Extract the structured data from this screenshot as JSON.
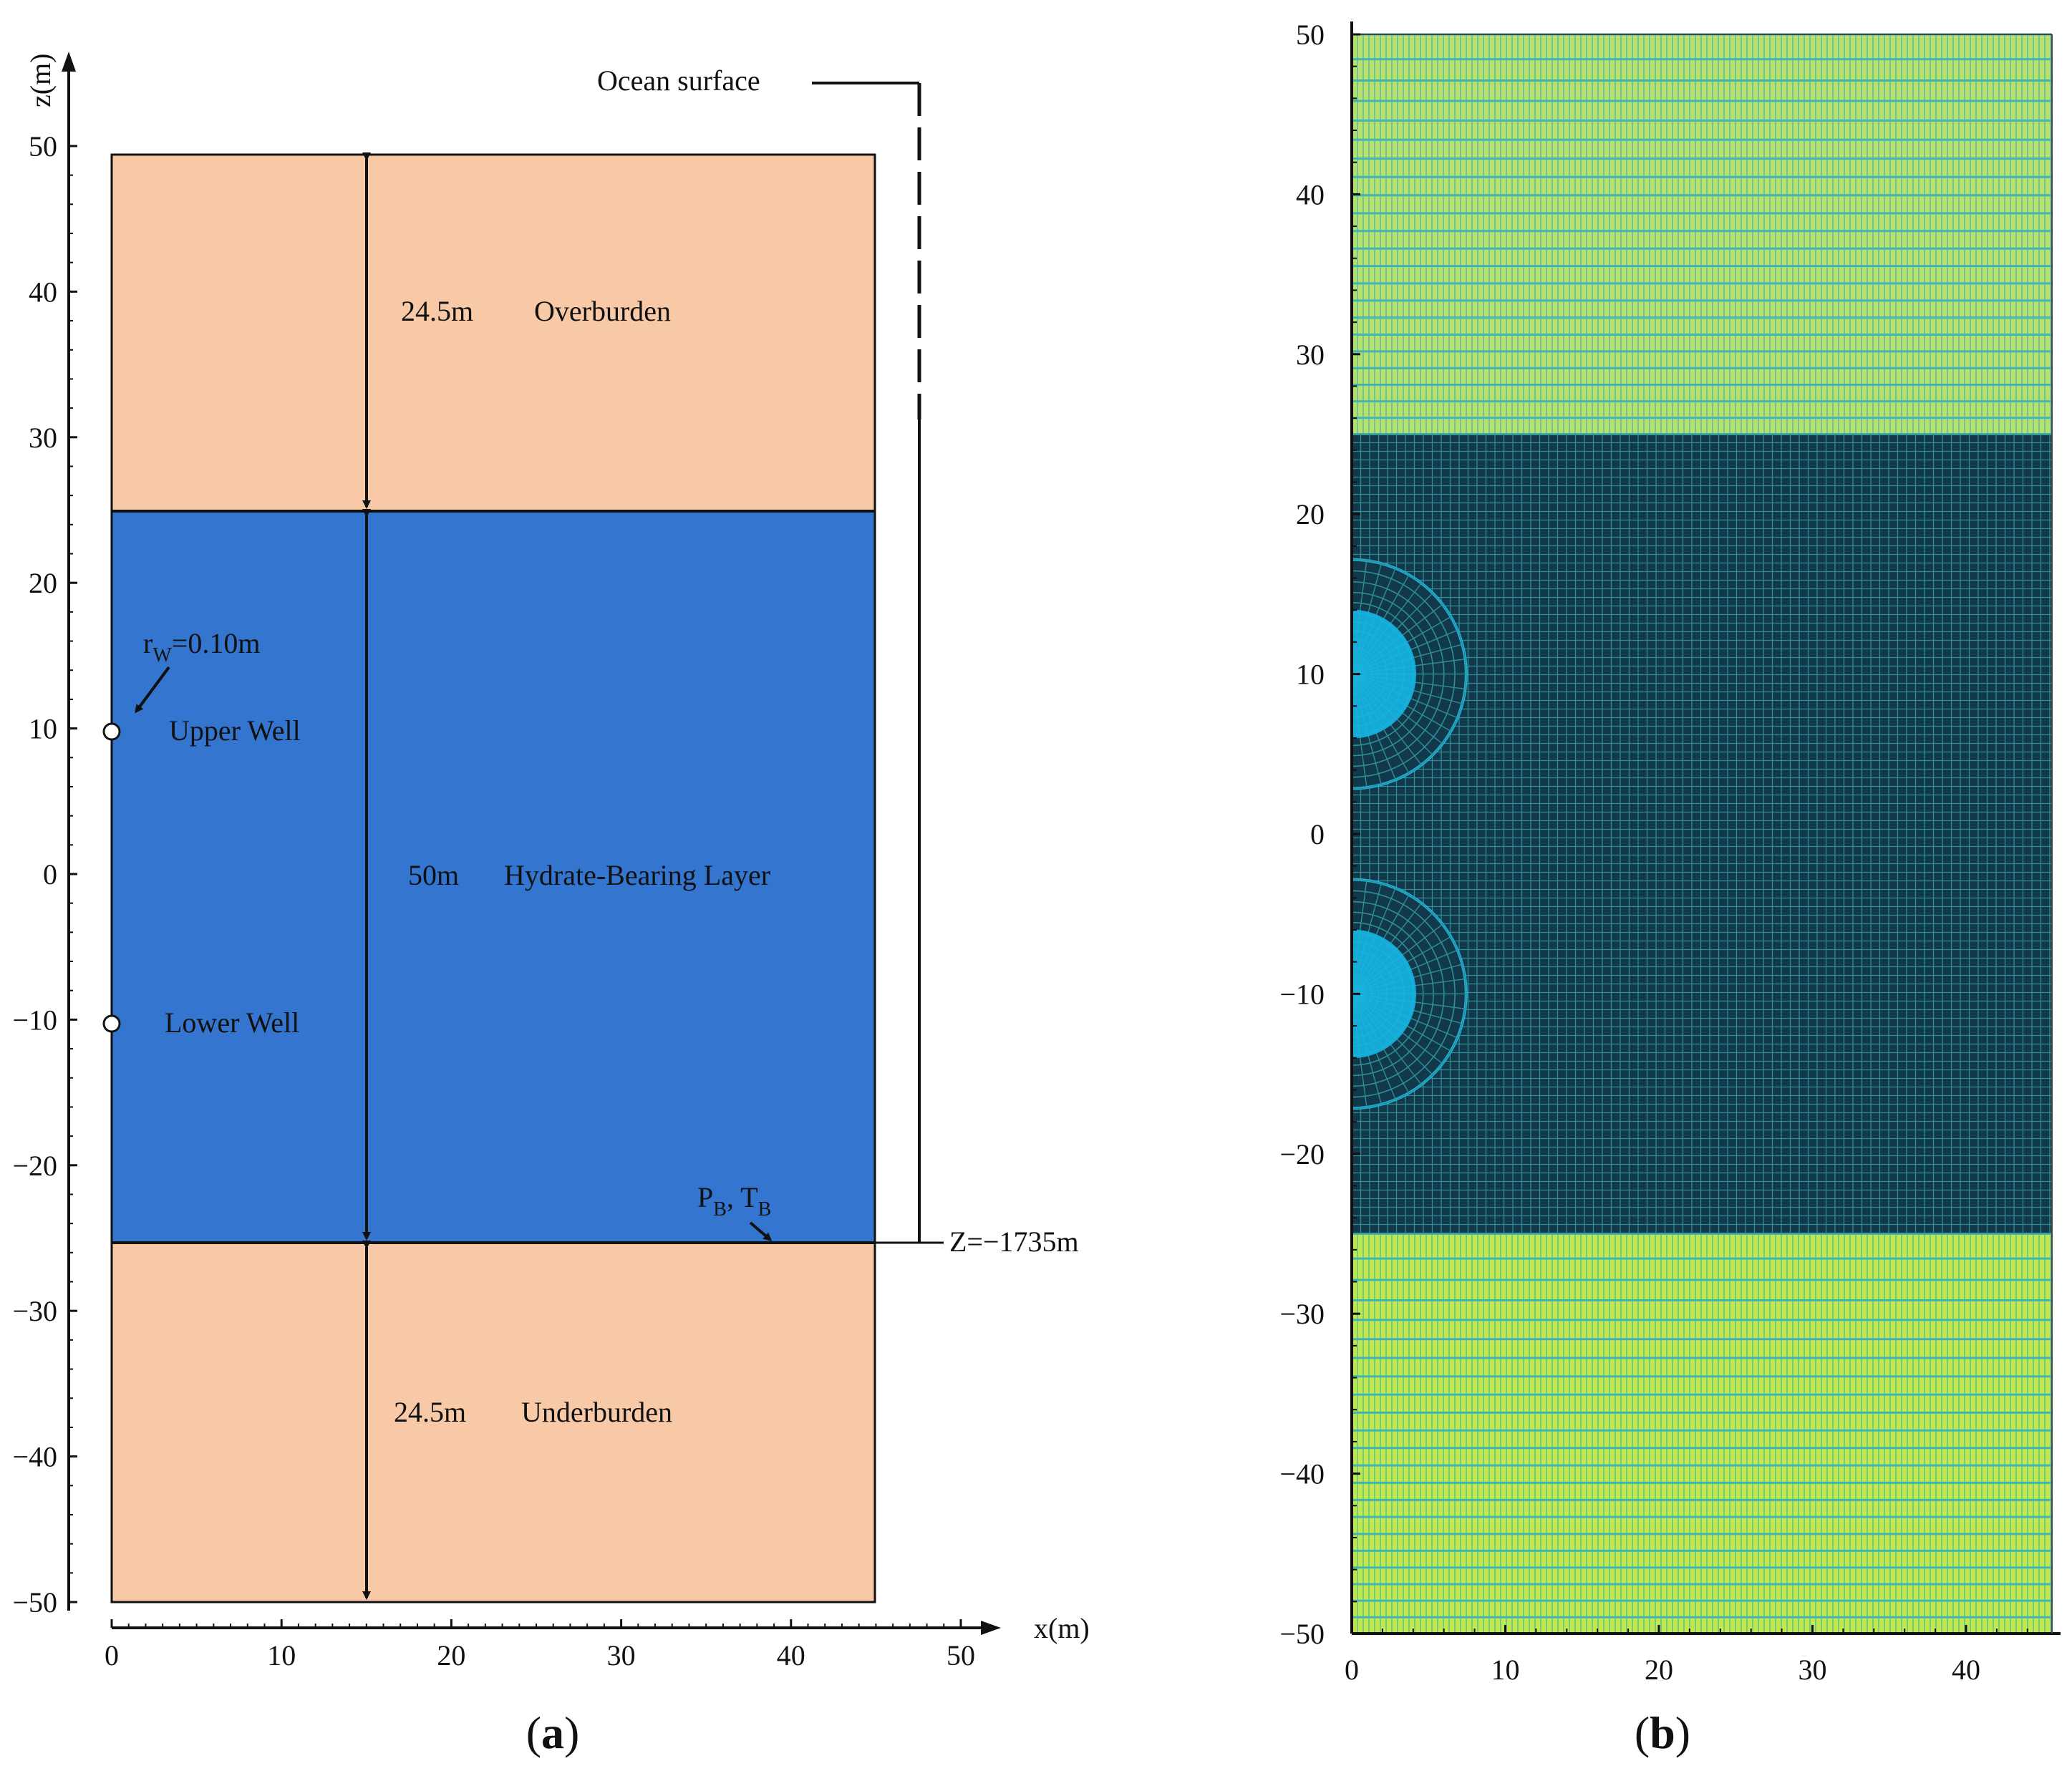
{
  "figure_a": {
    "x_axis_title": "x(m)",
    "z_axis_title": "z(m)",
    "x_ticks": [
      "0",
      "10",
      "20",
      "30",
      "40",
      "50"
    ],
    "z_ticks": [
      "50",
      "40",
      "30",
      "20",
      "10",
      "0",
      "−10",
      "−20",
      "−30",
      "−40",
      "−50"
    ],
    "ocean_surface": "Ocean surface",
    "overburden": {
      "thickness": "24.5m",
      "name": "Overburden"
    },
    "hydrate_layer": {
      "thickness": "50m",
      "name": "Hydrate-Bearing Layer"
    },
    "underburden": {
      "thickness": "24.5m",
      "name": "Underburden"
    },
    "well_radius": {
      "r": "r",
      "sub": "W",
      "value": "=0.10m"
    },
    "upper_well": "Upper Well",
    "lower_well": "Lower Well",
    "boundary": {
      "p": "P",
      "p_sub": "B",
      "sep": ", ",
      "t": "T",
      "t_sub": "B"
    },
    "depth_label": "Z=−1735m",
    "panel_label": {
      "open": "(",
      "letter": "a",
      "close": ")"
    }
  },
  "figure_b": {
    "x_ticks": [
      "0",
      "10",
      "20",
      "30",
      "40"
    ],
    "z_ticks": [
      "50",
      "40",
      "30",
      "20",
      "10",
      "0",
      "−10",
      "−20",
      "−30",
      "−40",
      "−50"
    ],
    "panel_label": {
      "open": "(",
      "letter": "b",
      "close": ")"
    }
  },
  "colors": {
    "sediment": "#f7c9a6",
    "hydrate": "#3476cf",
    "mesh_fill": "#b9e06a",
    "mesh_fill_bottom": "#c4e84a",
    "mesh_line": "#3fb6b4",
    "mesh_dark": "#12384c",
    "mesh_dark_line": "#2f8f93",
    "well_zone": "#16b6e6",
    "axis": "#111111"
  }
}
